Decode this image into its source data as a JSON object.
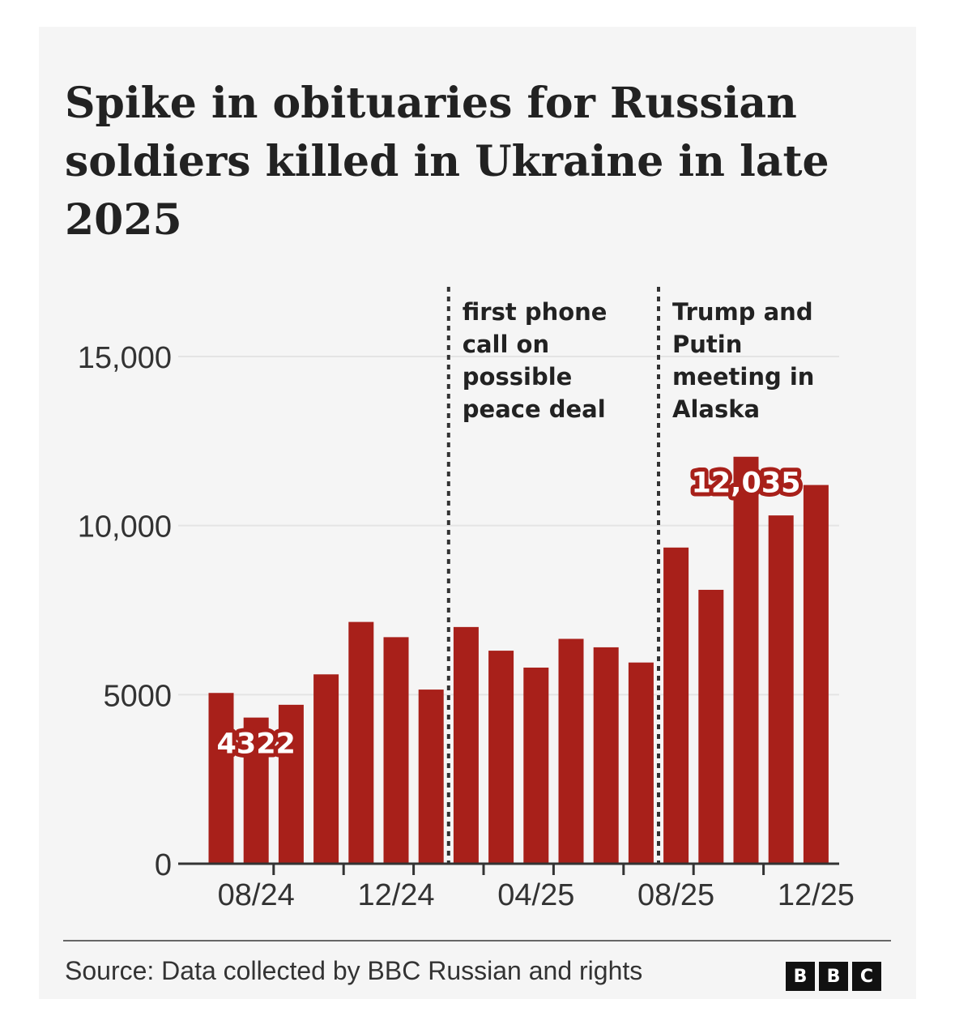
{
  "header": {
    "title": "Spike in obituaries for Russian soldiers killed in Ukraine in late 2025"
  },
  "footer": {
    "source": "Source: Data collected by BBC Russian and rights",
    "logo_letters": [
      "B",
      "B",
      "C"
    ]
  },
  "chart_data": {
    "type": "bar",
    "title": "Spike in obituaries for Russian soldiers killed in Ukraine in late 2025",
    "xlabel": "",
    "ylabel": "",
    "ylim": [
      0,
      15000
    ],
    "yticks": [
      0,
      5000,
      10000,
      15000
    ],
    "ytick_labels": [
      "0",
      "5000",
      "10,000",
      "15,000"
    ],
    "grid": true,
    "categories": [
      "07/24",
      "08/24",
      "09/24",
      "10/24",
      "11/24",
      "12/24",
      "01/25",
      "02/25",
      "03/25",
      "04/25",
      "05/25",
      "06/25",
      "07/25",
      "08/25",
      "09/25",
      "10/25",
      "11/25",
      "12/25"
    ],
    "xtick_labels": [
      "08/24",
      "12/24",
      "04/25",
      "08/25",
      "12/25"
    ],
    "values": [
      5050,
      4322,
      4700,
      5600,
      7150,
      6700,
      5150,
      7000,
      6300,
      5800,
      6650,
      6400,
      5950,
      9350,
      8100,
      12035,
      10300,
      11200
    ],
    "bar_color": "#a8201a",
    "data_labels": [
      {
        "category": "08/24",
        "text": "4322"
      },
      {
        "category": "10/25",
        "text": "12,035"
      }
    ],
    "annotations": [
      {
        "after_category": "01/25",
        "lines": [
          "first phone",
          "call on",
          "possible",
          "peace deal"
        ]
      },
      {
        "after_category": "07/25",
        "lines": [
          "Trump and",
          "Putin",
          "meeting in",
          "Alaska"
        ]
      }
    ]
  }
}
